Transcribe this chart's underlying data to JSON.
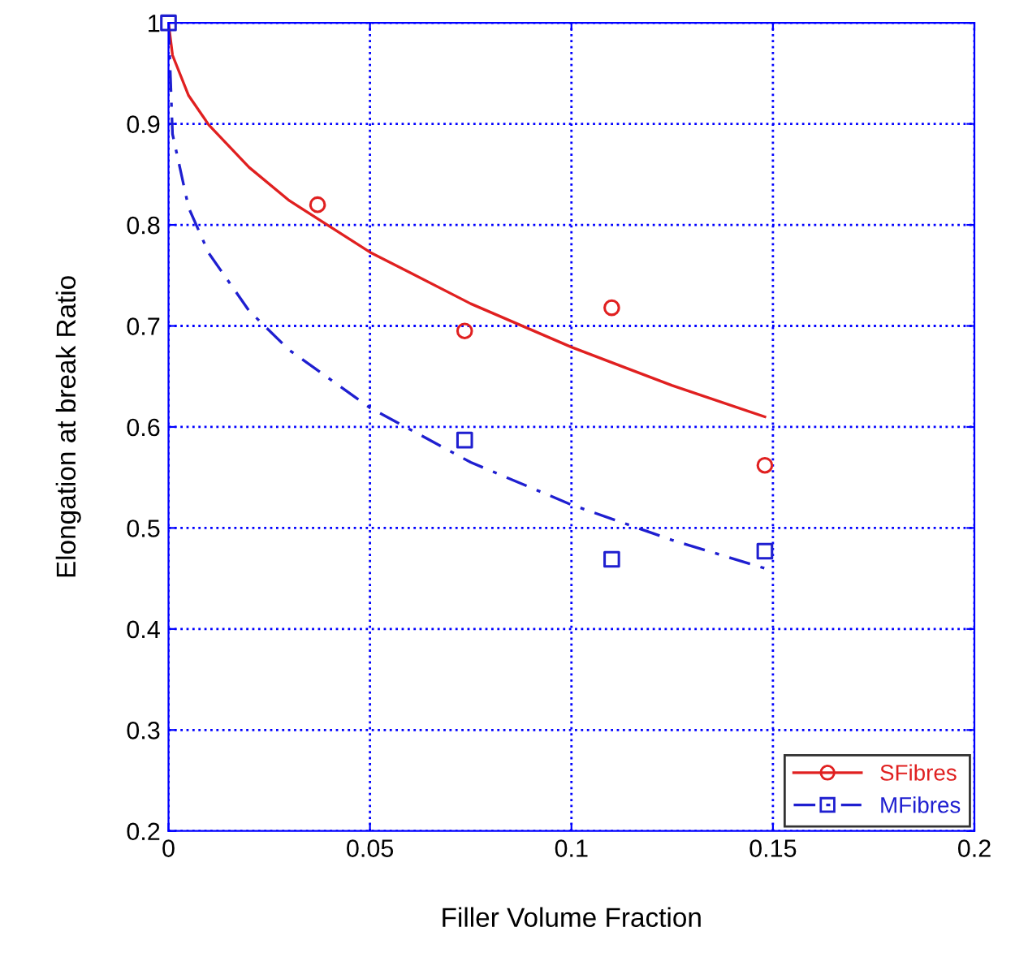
{
  "chart_data": {
    "type": "scatter",
    "xlabel": "Filler Volume Fraction",
    "ylabel": "Elongation at break Ratio",
    "xlim": [
      0,
      0.2
    ],
    "ylim": [
      0.2,
      1
    ],
    "xticks": [
      0,
      0.05,
      0.1,
      0.15,
      0.2
    ],
    "yticks": [
      0.2,
      0.3,
      0.4,
      0.5,
      0.6,
      0.7,
      0.8,
      0.9,
      1
    ],
    "grid": true,
    "legend": "bottom right",
    "series": [
      {
        "name": "SFibres",
        "marker": "circle",
        "color": "#e02020",
        "x": [
          0.037,
          0.0735,
          0.11,
          0.148
        ],
        "values": [
          0.82,
          0.695,
          0.718,
          0.562
        ]
      },
      {
        "type": "line",
        "line_style": "solid",
        "marker": "none",
        "color": "#e02020",
        "x": [
          0,
          0.001,
          0.005,
          0.01,
          0.02,
          0.03,
          0.05,
          0.075,
          0.1,
          0.125,
          0.148
        ],
        "values": [
          1.0,
          0.968,
          0.928,
          0.899,
          0.857,
          0.824,
          0.773,
          0.722,
          0.679,
          0.641,
          0.61
        ]
      },
      {
        "name": "MFibres",
        "marker": "square",
        "color": "#1f1fd0",
        "x": [
          0,
          0.0735,
          0.11,
          0.148
        ],
        "values": [
          1.0,
          0.587,
          0.469,
          0.477
        ]
      },
      {
        "type": "line",
        "line_style": "dashed",
        "marker": "none",
        "color": "#1f1fd0",
        "x": [
          0,
          0.001,
          0.005,
          0.01,
          0.02,
          0.03,
          0.05,
          0.075,
          0.1,
          0.125,
          0.148
        ],
        "values": [
          1.0,
          0.89,
          0.817,
          0.772,
          0.715,
          0.676,
          0.619,
          0.565,
          0.523,
          0.488,
          0.46
        ]
      }
    ]
  }
}
